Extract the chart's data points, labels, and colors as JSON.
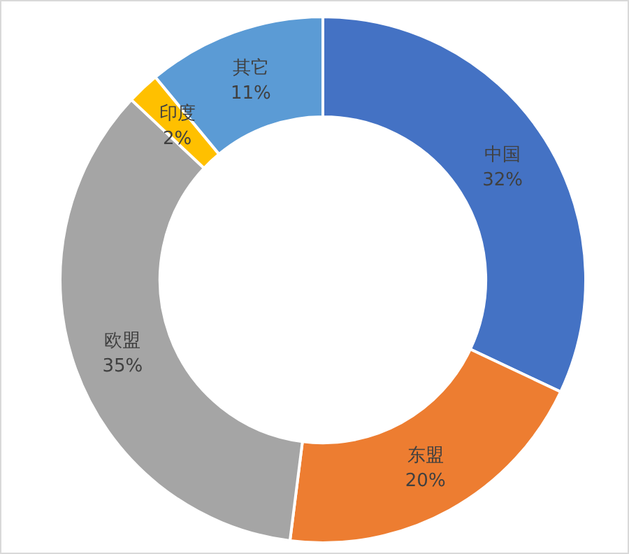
{
  "chart_data": {
    "type": "donut",
    "categories": [
      "中国",
      "东盟",
      "欧盟",
      "印度",
      "其它"
    ],
    "values": [
      32,
      20,
      35,
      2,
      11
    ],
    "colors": [
      "#4472c4",
      "#ed7d31",
      "#a5a5a5",
      "#ffc000",
      "#5b9bd5"
    ],
    "value_labels": [
      "32%",
      "20%",
      "35%",
      "2%",
      "11%"
    ]
  }
}
